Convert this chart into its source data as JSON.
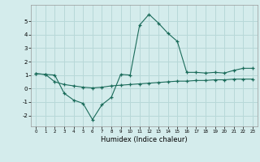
{
  "xlabel": "Humidex (Indice chaleur)",
  "ylabel": "",
  "background_color": "#d4ecec",
  "grid_color": "#b8d8d8",
  "line_color": "#1a6b5a",
  "xlim": [
    -0.5,
    23.5
  ],
  "ylim": [
    -2.8,
    6.2
  ],
  "yticks": [
    -2,
    -1,
    0,
    1,
    2,
    3,
    4,
    5
  ],
  "xticks": [
    0,
    1,
    2,
    3,
    4,
    5,
    6,
    7,
    8,
    9,
    10,
    11,
    12,
    13,
    14,
    15,
    16,
    17,
    18,
    19,
    20,
    21,
    22,
    23
  ],
  "line1_x": [
    0,
    1,
    2,
    3,
    4,
    5,
    6,
    7,
    8,
    9,
    10,
    11,
    12,
    13,
    14,
    15,
    16,
    17,
    18,
    19,
    20,
    21,
    22,
    23
  ],
  "line1_y": [
    1.1,
    1.05,
    1.0,
    -0.35,
    -0.85,
    -1.1,
    -2.3,
    -1.2,
    -0.65,
    1.05,
    1.0,
    4.7,
    5.5,
    4.85,
    4.1,
    3.5,
    1.2,
    1.2,
    1.15,
    1.2,
    1.15,
    1.35,
    1.5,
    1.5
  ],
  "line2_x": [
    0,
    1,
    2,
    3,
    4,
    5,
    6,
    7,
    8,
    9,
    10,
    11,
    12,
    13,
    14,
    15,
    16,
    17,
    18,
    19,
    20,
    21,
    22,
    23
  ],
  "line2_y": [
    1.1,
    1.05,
    0.5,
    0.3,
    0.2,
    0.1,
    0.05,
    0.1,
    0.2,
    0.25,
    0.3,
    0.35,
    0.4,
    0.45,
    0.5,
    0.55,
    0.55,
    0.6,
    0.6,
    0.65,
    0.65,
    0.7,
    0.7,
    0.7
  ]
}
